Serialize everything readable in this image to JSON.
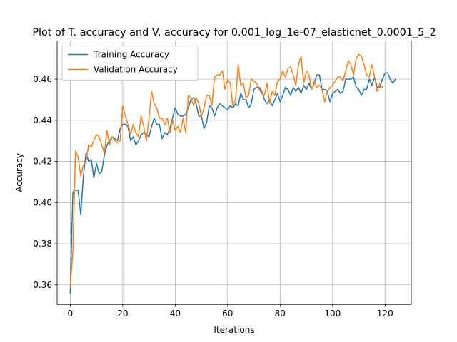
{
  "chart_data": {
    "type": "line",
    "title": "Plot of T. accuracy and V. accuracy for 0.001_log_1e-07_elasticnet_0.0001_5_2",
    "xlabel": "Iterations",
    "ylabel": "Accuracy",
    "xlim": [
      -5,
      130
    ],
    "ylim": [
      0.3505,
      0.4785
    ],
    "xticks": [
      0,
      20,
      40,
      60,
      80,
      100,
      120
    ],
    "yticks": [
      0.36,
      0.38,
      0.4,
      0.42,
      0.44,
      0.46
    ],
    "ytick_labels": [
      "0.36",
      "0.38",
      "0.40",
      "0.42",
      "0.44",
      "0.46"
    ],
    "grid": true,
    "legend_position": "top-left",
    "series": [
      {
        "name": "Training Accuracy",
        "color": "#1f77b4",
        "values": [
          0.356,
          0.405,
          0.406,
          0.406,
          0.394,
          0.413,
          0.424,
          0.42,
          0.421,
          0.412,
          0.419,
          0.414,
          0.415,
          0.423,
          0.428,
          0.43,
          0.432,
          0.431,
          0.43,
          0.436,
          0.438,
          0.438,
          0.437,
          0.43,
          0.432,
          0.428,
          0.43,
          0.433,
          0.434,
          0.433,
          0.432,
          0.437,
          0.441,
          0.438,
          0.438,
          0.431,
          0.434,
          0.433,
          0.436,
          0.441,
          0.446,
          0.443,
          0.442,
          0.442,
          0.443,
          0.446,
          0.45,
          0.451,
          0.448,
          0.442,
          0.442,
          0.436,
          0.439,
          0.447,
          0.446,
          0.442,
          0.446,
          0.448,
          0.447,
          0.446,
          0.445,
          0.447,
          0.446,
          0.448,
          0.447,
          0.453,
          0.45,
          0.45,
          0.446,
          0.448,
          0.455,
          0.456,
          0.456,
          0.454,
          0.45,
          0.448,
          0.45,
          0.447,
          0.45,
          0.453,
          0.449,
          0.452,
          0.456,
          0.455,
          0.452,
          0.456,
          0.454,
          0.456,
          0.453,
          0.457,
          0.455,
          0.458,
          0.455,
          0.458,
          0.462,
          0.462,
          0.455,
          0.455,
          0.454,
          0.449,
          0.453,
          0.454,
          0.455,
          0.453,
          0.454,
          0.46,
          0.46,
          0.46,
          0.461,
          0.456,
          0.455,
          0.452,
          0.455,
          0.455,
          0.46,
          0.457,
          0.461,
          0.456,
          0.456,
          0.46,
          0.463,
          0.463,
          0.46,
          0.458,
          0.46
        ]
      },
      {
        "name": "Validation Accuracy",
        "color": "#ff7f0e",
        "values": [
          0.359,
          0.376,
          0.425,
          0.422,
          0.413,
          0.418,
          0.42,
          0.428,
          0.427,
          0.43,
          0.433,
          0.432,
          0.428,
          0.424,
          0.435,
          0.428,
          0.432,
          0.43,
          0.429,
          0.43,
          0.447,
          0.442,
          0.438,
          0.433,
          0.438,
          0.434,
          0.432,
          0.442,
          0.437,
          0.43,
          0.441,
          0.454,
          0.448,
          0.446,
          0.441,
          0.441,
          0.438,
          0.441,
          0.434,
          0.44,
          0.435,
          0.437,
          0.434,
          0.441,
          0.434,
          0.452,
          0.451,
          0.447,
          0.451,
          0.448,
          0.442,
          0.446,
          0.452,
          0.452,
          0.447,
          0.461,
          0.462,
          0.462,
          0.464,
          0.455,
          0.46,
          0.458,
          0.447,
          0.45,
          0.467,
          0.457,
          0.458,
          0.451,
          0.452,
          0.46,
          0.459,
          0.458,
          0.455,
          0.453,
          0.452,
          0.458,
          0.448,
          0.454,
          0.452,
          0.459,
          0.46,
          0.464,
          0.461,
          0.465,
          0.466,
          0.462,
          0.457,
          0.467,
          0.471,
          0.458,
          0.464,
          0.462,
          0.455,
          0.459,
          0.456,
          0.457,
          0.455,
          0.449,
          0.454,
          0.456,
          0.457,
          0.459,
          0.461,
          0.461,
          0.459,
          0.464,
          0.469,
          0.467,
          0.462,
          0.47,
          0.472,
          0.471,
          0.467,
          0.462,
          0.461,
          0.467,
          0.461,
          0.454,
          0.458,
          0.456
        ]
      }
    ]
  }
}
